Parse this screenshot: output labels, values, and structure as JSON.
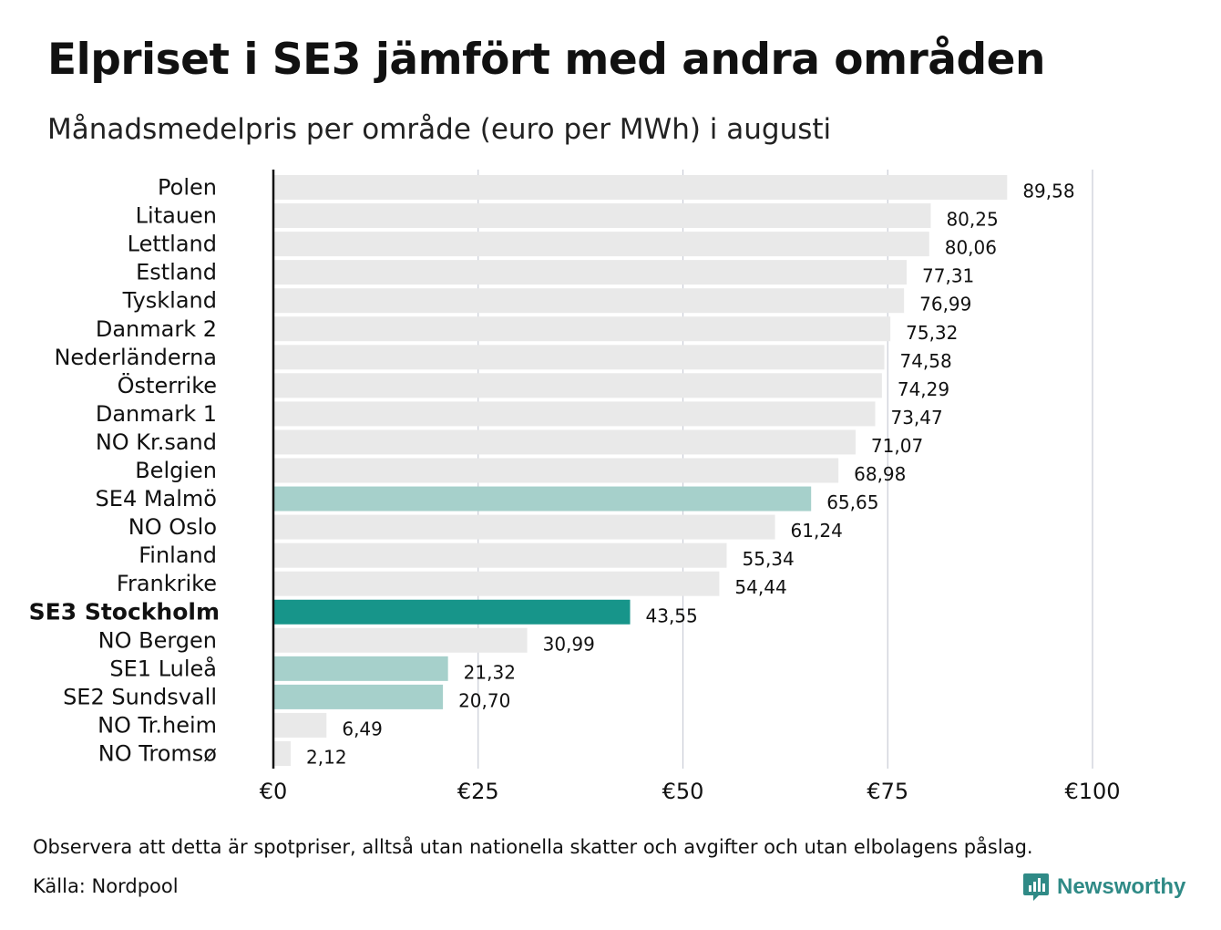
{
  "title": "Elpriset i SE3 jämfört med andra områden",
  "subtitle": "Månadsmedelpris per område (euro per MWh) i augusti",
  "chart_data": {
    "type": "bar",
    "orientation": "horizontal",
    "categories": [
      "Polen",
      "Litauen",
      "Lettland",
      "Estland",
      "Tyskland",
      "Danmark 2",
      "Nederländerna",
      "Österrike",
      "Danmark 1",
      "NO Kr.sand",
      "Belgien",
      "SE4 Malmö",
      "NO Oslo",
      "Finland",
      "Frankrike",
      "SE3 Stockholm",
      "NO Bergen",
      "SE1 Luleå",
      "SE2 Sundsvall",
      "NO Tr.heim",
      "NO Tromsø"
    ],
    "values": [
      89.58,
      80.25,
      80.06,
      77.31,
      76.99,
      75.32,
      74.58,
      74.29,
      73.47,
      71.07,
      68.98,
      65.65,
      61.24,
      55.34,
      54.44,
      43.55,
      30.99,
      21.32,
      20.7,
      6.49,
      2.12
    ],
    "value_labels": [
      "89,58",
      "80,25",
      "80,06",
      "77,31",
      "76,99",
      "75,32",
      "74,58",
      "74,29",
      "73,47",
      "71,07",
      "68,98",
      "65,65",
      "61,24",
      "55,34",
      "54,44",
      "43,55",
      "30,99",
      "21,32",
      "20,70",
      "6,49",
      "2,12"
    ],
    "highlight": [
      "default",
      "default",
      "default",
      "default",
      "default",
      "default",
      "default",
      "default",
      "default",
      "default",
      "default",
      "se-other",
      "default",
      "default",
      "default",
      "se3",
      "default",
      "se-other",
      "se-other",
      "default",
      "default"
    ],
    "bold_category": "SE3 Stockholm",
    "xlim": [
      0,
      100
    ],
    "xticks": [
      0,
      25,
      50,
      75,
      100
    ],
    "xtick_labels": [
      "€0",
      "€25",
      "€50",
      "€75",
      "€100"
    ],
    "grid": "vertical",
    "colors": {
      "default": "#e9e9e9",
      "se-other": "#a6d0cb",
      "se3": "#17958a",
      "grid": "#c9ccd6",
      "axis": "#111111"
    }
  },
  "note": "Observera att detta är spotpriser, alltså utan nationella skatter och avgifter och utan elbolagens påslag.",
  "source": "Källa: Nordpool",
  "brand": {
    "name": "Newsworthy",
    "icon": "newsworthy-logo-icon",
    "color": "#2f8a86"
  }
}
